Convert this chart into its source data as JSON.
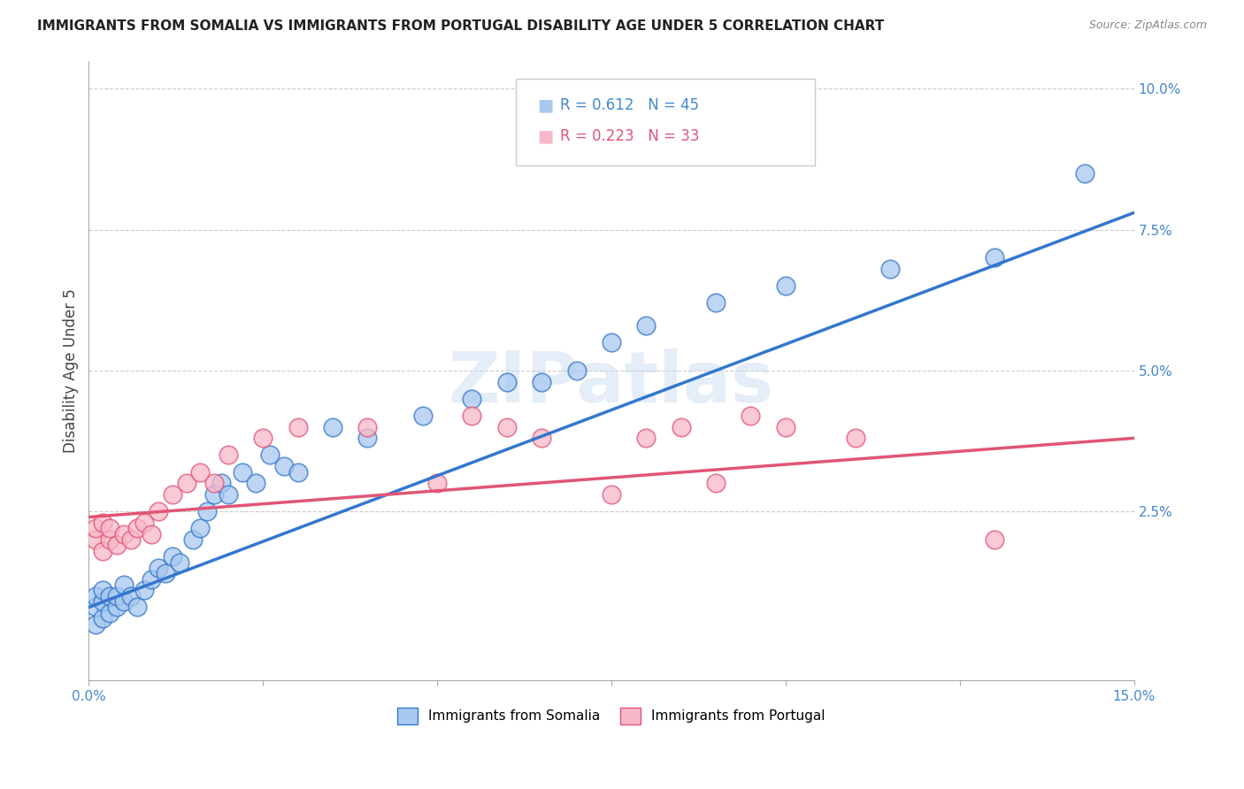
{
  "title": "IMMIGRANTS FROM SOMALIA VS IMMIGRANTS FROM PORTUGAL DISABILITY AGE UNDER 5 CORRELATION CHART",
  "source": "Source: ZipAtlas.com",
  "ylabel": "Disability Age Under 5",
  "somalia_R": 0.612,
  "somalia_N": 45,
  "portugal_R": 0.223,
  "portugal_N": 33,
  "xlim": [
    0.0,
    0.15
  ],
  "ylim": [
    -0.005,
    0.105
  ],
  "yticks": [
    0.025,
    0.05,
    0.075,
    0.1
  ],
  "ytick_labels": [
    "2.5%",
    "5.0%",
    "7.5%",
    "10.0%"
  ],
  "xticks": [
    0.0,
    0.025,
    0.05,
    0.075,
    0.1,
    0.125,
    0.15
  ],
  "xtick_labels": [
    "0.0%",
    "",
    "",
    "",
    "",
    "",
    "15.0%"
  ],
  "color_somalia": "#A8C8F0",
  "color_portugal": "#F8B8C8",
  "line_color_somalia": "#3377CC",
  "line_color_portugal": "#E05575",
  "background_color": "#FFFFFF",
  "grid_color": "#CCCCCC",
  "watermark": "ZIPatlas",
  "somalia_x": [
    0.001,
    0.001,
    0.001,
    0.002,
    0.002,
    0.002,
    0.003,
    0.003,
    0.004,
    0.004,
    0.005,
    0.005,
    0.006,
    0.007,
    0.008,
    0.009,
    0.01,
    0.011,
    0.012,
    0.013,
    0.015,
    0.016,
    0.017,
    0.018,
    0.019,
    0.02,
    0.022,
    0.024,
    0.026,
    0.028,
    0.03,
    0.035,
    0.04,
    0.048,
    0.055,
    0.06,
    0.065,
    0.07,
    0.075,
    0.08,
    0.09,
    0.1,
    0.115,
    0.13,
    0.143
  ],
  "somalia_y": [
    0.005,
    0.008,
    0.01,
    0.006,
    0.009,
    0.011,
    0.007,
    0.01,
    0.008,
    0.01,
    0.009,
    0.012,
    0.01,
    0.008,
    0.011,
    0.013,
    0.015,
    0.014,
    0.017,
    0.016,
    0.02,
    0.022,
    0.025,
    0.028,
    0.03,
    0.028,
    0.032,
    0.03,
    0.035,
    0.033,
    0.032,
    0.04,
    0.038,
    0.042,
    0.045,
    0.048,
    0.048,
    0.05,
    0.055,
    0.058,
    0.062,
    0.065,
    0.068,
    0.07,
    0.085
  ],
  "portugal_x": [
    0.001,
    0.001,
    0.002,
    0.002,
    0.003,
    0.003,
    0.004,
    0.005,
    0.006,
    0.007,
    0.008,
    0.009,
    0.01,
    0.012,
    0.014,
    0.016,
    0.018,
    0.02,
    0.025,
    0.03,
    0.04,
    0.05,
    0.055,
    0.06,
    0.065,
    0.075,
    0.08,
    0.085,
    0.09,
    0.095,
    0.1,
    0.11,
    0.13
  ],
  "portugal_y": [
    0.02,
    0.022,
    0.018,
    0.023,
    0.02,
    0.022,
    0.019,
    0.021,
    0.02,
    0.022,
    0.023,
    0.021,
    0.025,
    0.028,
    0.03,
    0.032,
    0.03,
    0.035,
    0.038,
    0.04,
    0.04,
    0.03,
    0.042,
    0.04,
    0.038,
    0.028,
    0.038,
    0.04,
    0.03,
    0.042,
    0.04,
    0.038,
    0.02
  ],
  "somalia_line_x0": 0.0,
  "somalia_line_y0": 0.008,
  "somalia_line_x1": 0.15,
  "somalia_line_y1": 0.078,
  "portugal_line_x0": 0.0,
  "portugal_line_y0": 0.024,
  "portugal_line_x1": 0.15,
  "portugal_line_y1": 0.038
}
